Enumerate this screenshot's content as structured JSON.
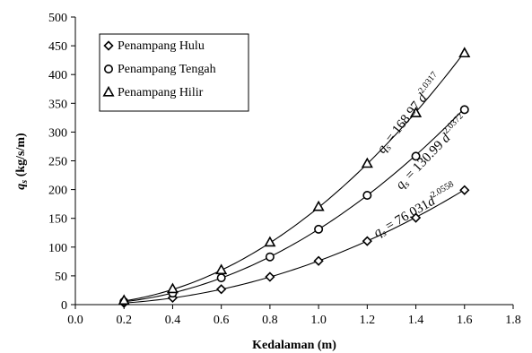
{
  "chart_data": {
    "type": "scatter",
    "xlabel": "Kedalaman (m)",
    "ylabel_main": "q",
    "ylabel_sub": "s",
    "ylabel_unit": " (kg/s/m)",
    "xlim": [
      0.0,
      1.8
    ],
    "ylim": [
      0,
      500
    ],
    "x_ticks": [
      "0.0",
      "0.2",
      "0.4",
      "0.6",
      "0.8",
      "1.0",
      "1.2",
      "1.4",
      "1.6",
      "1.8"
    ],
    "y_ticks": [
      "0",
      "50",
      "100",
      "150",
      "200",
      "250",
      "300",
      "350",
      "400",
      "450",
      "500"
    ],
    "grid": false,
    "legend_position": "top-left",
    "x": [
      0.2,
      0.4,
      0.6,
      0.8,
      1.0,
      1.2,
      1.4,
      1.6
    ],
    "series": [
      {
        "name": "Penampang Hulu",
        "marker": "diamond",
        "values": [
          2.9,
          11.8,
          26.8,
          48.2,
          76.0,
          110.4,
          151.0,
          199.0
        ],
        "fit": {
          "a": 76.031,
          "b": 2.0558
        },
        "equation": {
          "q": "q",
          "sub": "s",
          "mid": " = 76.031",
          "d": "d",
          "exp": "2.0558"
        }
      },
      {
        "name": "Penampang Tengah",
        "marker": "circle",
        "values": [
          5.0,
          20.0,
          46.5,
          83.0,
          131.0,
          190.0,
          258.0,
          339.0
        ],
        "fit": {
          "a": 130.99,
          "b": 2.0372
        },
        "equation": {
          "q": "q",
          "sub": "s",
          "mid": " = 130.99 ",
          "d": "d",
          "exp": "2.0372"
        }
      },
      {
        "name": "Penampang Hilir",
        "marker": "triangle",
        "values": [
          7.0,
          27.0,
          60.0,
          108.0,
          170.0,
          245.0,
          333.0,
          437.0
        ],
        "fit": {
          "a": 168.97,
          "b": 2.0317
        },
        "equation": {
          "q": "q",
          "sub": "s",
          "mid": " = 168.97 ",
          "d": "d",
          "exp": "2.0317"
        }
      }
    ]
  }
}
